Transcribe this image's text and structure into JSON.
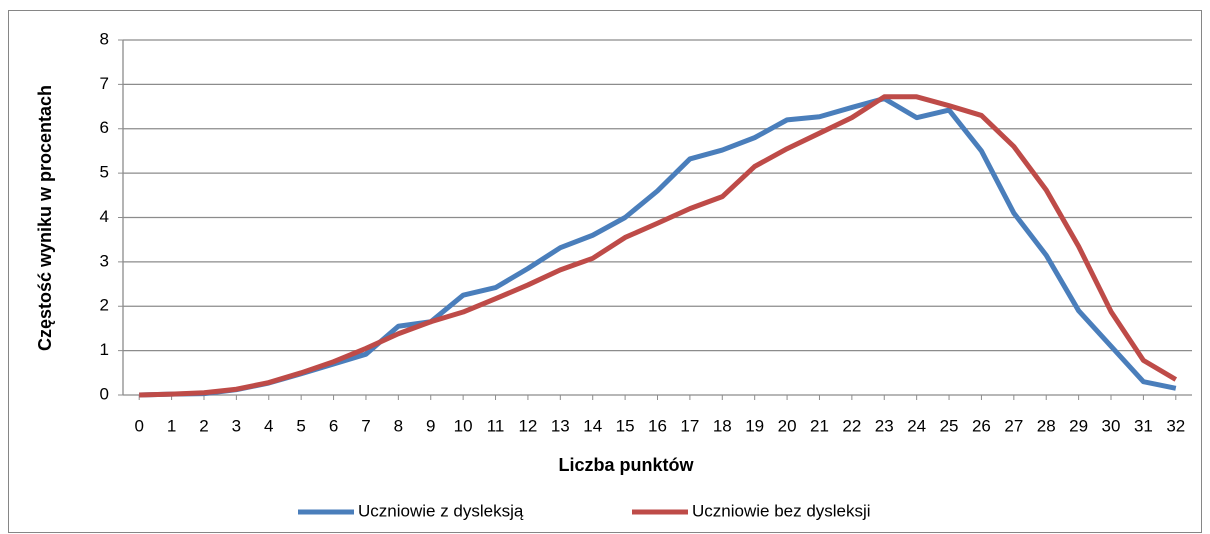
{
  "chart_data": {
    "type": "line",
    "x_label": "Liczba punktów",
    "y_label": "Częstość wyniku w procentach",
    "x": [
      0,
      1,
      2,
      3,
      4,
      5,
      6,
      7,
      8,
      9,
      10,
      11,
      12,
      13,
      14,
      15,
      16,
      17,
      18,
      19,
      20,
      21,
      22,
      23,
      24,
      25,
      26,
      27,
      28,
      29,
      30,
      31,
      32
    ],
    "xlim": [
      -0.5,
      32.5
    ],
    "xticks": [
      0,
      1,
      2,
      3,
      4,
      5,
      6,
      7,
      8,
      9,
      10,
      11,
      12,
      13,
      14,
      15,
      16,
      17,
      18,
      19,
      20,
      21,
      22,
      23,
      24,
      25,
      26,
      27,
      28,
      29,
      30,
      31,
      32
    ],
    "ylim": [
      0,
      8
    ],
    "yticks": [
      0,
      1,
      2,
      3,
      4,
      5,
      6,
      7,
      8
    ],
    "grid": true,
    "legend": "bottom",
    "series": [
      {
        "name": "Uczniowie z dysleksją",
        "color": "#4a7ebb",
        "values": [
          0,
          0.02,
          0.03,
          0.12,
          0.27,
          0.48,
          0.7,
          0.92,
          1.55,
          1.65,
          2.25,
          2.42,
          2.85,
          3.32,
          3.6,
          4.0,
          4.6,
          5.32,
          5.52,
          5.8,
          6.2,
          6.27,
          6.48,
          6.68,
          6.25,
          6.42,
          5.5,
          4.1,
          3.15,
          1.9,
          1.1,
          0.3,
          0.15
        ]
      },
      {
        "name": "Uczniowie bez dysleksji",
        "color": "#be4b48",
        "values": [
          0,
          0.02,
          0.05,
          0.13,
          0.28,
          0.5,
          0.75,
          1.05,
          1.38,
          1.65,
          1.87,
          2.17,
          2.48,
          2.82,
          3.08,
          3.55,
          3.87,
          4.2,
          4.47,
          5.15,
          5.55,
          5.9,
          6.25,
          6.72,
          6.72,
          6.52,
          6.3,
          5.6,
          4.62,
          3.35,
          1.88,
          0.78,
          0.35
        ]
      }
    ]
  }
}
